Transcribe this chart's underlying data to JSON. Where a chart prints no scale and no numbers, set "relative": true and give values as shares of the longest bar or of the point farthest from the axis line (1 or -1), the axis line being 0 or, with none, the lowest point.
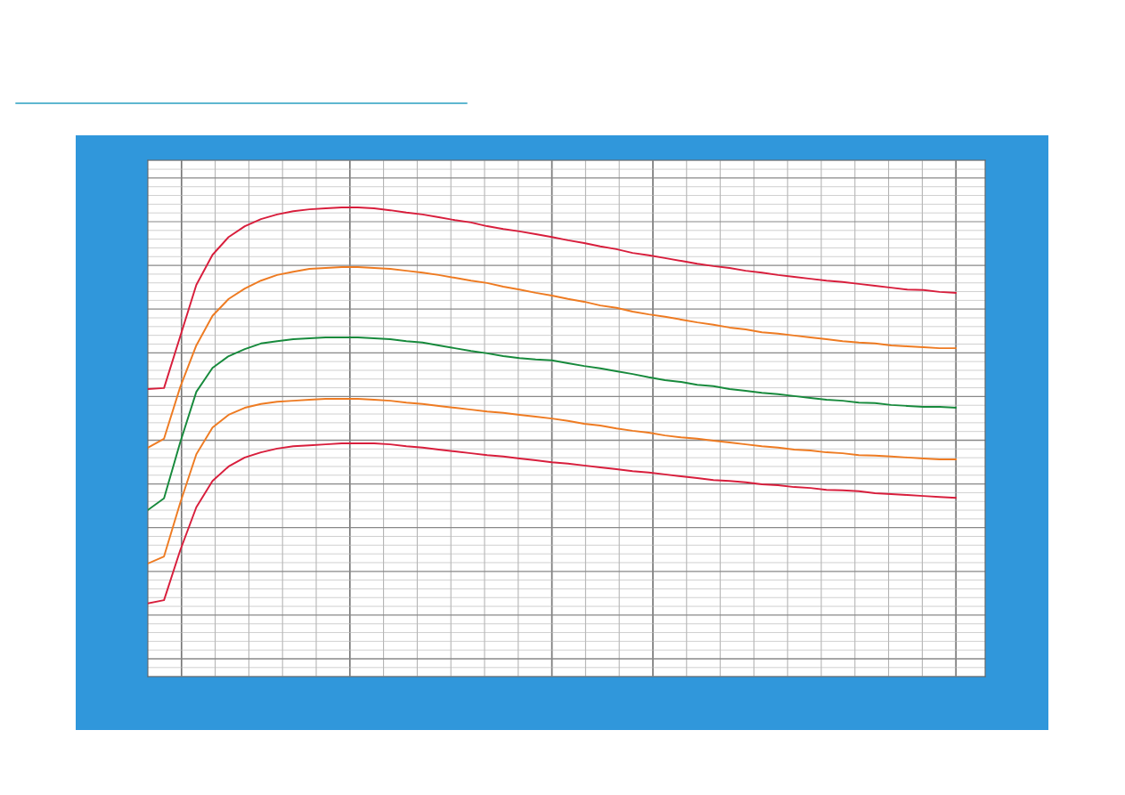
{
  "chart_data": {
    "type": "line",
    "relative": true,
    "grid": true,
    "marker": "none",
    "line_style": "solid",
    "categories": [
      null,
      null,
      null,
      null,
      null,
      null,
      null,
      null,
      null,
      null,
      null,
      null,
      null,
      null,
      null,
      null,
      null,
      null,
      null,
      null,
      null,
      null,
      null,
      null,
      null,
      null,
      null,
      null,
      null,
      null,
      null,
      null,
      null,
      null,
      null,
      null,
      null,
      null,
      null,
      null,
      null,
      null,
      null,
      null,
      null,
      null,
      null,
      null,
      null,
      null,
      null
    ],
    "series": [
      {
        "color": "#d81e3c",
        "values": [
          0.613,
          0.615,
          0.725,
          0.835,
          0.899,
          0.937,
          0.96,
          0.975,
          0.985,
          0.992,
          0.996,
          0.998,
          1,
          1,
          0.998,
          0.994,
          0.989,
          0.985,
          0.979,
          0.973,
          0.968,
          0.96,
          0.954,
          0.949,
          0.943,
          0.937,
          0.93,
          0.924,
          0.917,
          0.911,
          0.903,
          0.898,
          0.892,
          0.886,
          0.88,
          0.875,
          0.871,
          0.865,
          0.861,
          0.856,
          0.852,
          0.848,
          0.844,
          0.841,
          0.837,
          0.833,
          0.829,
          0.825,
          0.824,
          0.82,
          0.818
        ]
      },
      {
        "color": "#ee7b22",
        "values": [
          0.488,
          0.507,
          0.617,
          0.706,
          0.769,
          0.805,
          0.827,
          0.844,
          0.856,
          0.863,
          0.869,
          0.871,
          0.873,
          0.873,
          0.871,
          0.869,
          0.865,
          0.861,
          0.856,
          0.85,
          0.844,
          0.839,
          0.831,
          0.825,
          0.818,
          0.812,
          0.805,
          0.799,
          0.791,
          0.786,
          0.778,
          0.772,
          0.767,
          0.761,
          0.755,
          0.75,
          0.744,
          0.74,
          0.734,
          0.731,
          0.727,
          0.723,
          0.719,
          0.715,
          0.712,
          0.71,
          0.706,
          0.704,
          0.702,
          0.7,
          0.7
        ]
      },
      {
        "color": "#178a3c",
        "values": [
          0.355,
          0.38,
          0.499,
          0.607,
          0.658,
          0.683,
          0.698,
          0.71,
          0.715,
          0.719,
          0.721,
          0.723,
          0.723,
          0.723,
          0.721,
          0.719,
          0.715,
          0.712,
          0.706,
          0.7,
          0.694,
          0.689,
          0.683,
          0.679,
          0.676,
          0.674,
          0.668,
          0.662,
          0.657,
          0.651,
          0.645,
          0.638,
          0.632,
          0.628,
          0.622,
          0.619,
          0.613,
          0.609,
          0.605,
          0.602,
          0.598,
          0.594,
          0.59,
          0.588,
          0.584,
          0.583,
          0.579,
          0.577,
          0.575,
          0.575,
          0.573
        ]
      },
      {
        "color": "#ee7b22",
        "values": [
          0.241,
          0.256,
          0.37,
          0.474,
          0.531,
          0.558,
          0.573,
          0.581,
          0.586,
          0.588,
          0.59,
          0.592,
          0.592,
          0.592,
          0.59,
          0.588,
          0.584,
          0.581,
          0.577,
          0.573,
          0.569,
          0.565,
          0.562,
          0.558,
          0.554,
          0.55,
          0.545,
          0.539,
          0.535,
          0.529,
          0.524,
          0.52,
          0.514,
          0.51,
          0.507,
          0.503,
          0.499,
          0.495,
          0.491,
          0.488,
          0.484,
          0.482,
          0.478,
          0.476,
          0.472,
          0.471,
          0.469,
          0.467,
          0.465,
          0.463,
          0.463
        ]
      },
      {
        "color": "#d81e3c",
        "values": [
          0.156,
          0.163,
          0.269,
          0.361,
          0.417,
          0.448,
          0.467,
          0.478,
          0.486,
          0.491,
          0.493,
          0.495,
          0.497,
          0.497,
          0.497,
          0.495,
          0.491,
          0.488,
          0.484,
          0.48,
          0.476,
          0.472,
          0.469,
          0.465,
          0.461,
          0.457,
          0.454,
          0.45,
          0.446,
          0.442,
          0.438,
          0.435,
          0.431,
          0.427,
          0.423,
          0.419,
          0.417,
          0.414,
          0.41,
          0.408,
          0.404,
          0.402,
          0.398,
          0.397,
          0.395,
          0.391,
          0.389,
          0.387,
          0.385,
          0.383,
          0.381
        ]
      }
    ]
  }
}
